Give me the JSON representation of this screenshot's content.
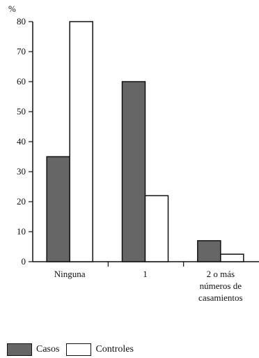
{
  "chart_data": {
    "type": "bar",
    "ylabel": "%",
    "ylim": [
      0,
      80
    ],
    "yticks": [
      0,
      10,
      20,
      30,
      40,
      50,
      60,
      70,
      80
    ],
    "categories": [
      "Ninguna",
      "1",
      "2 o más números de casamientos"
    ],
    "category_lines": [
      [
        "Ninguna"
      ],
      [
        "1"
      ],
      [
        "2 o más",
        "números de",
        "casamientos"
      ]
    ],
    "series": [
      {
        "name": "Casos",
        "color": "#666666",
        "values": [
          35,
          60,
          7
        ]
      },
      {
        "name": "Controles",
        "color": "#ffffff",
        "values": [
          80,
          22,
          2.5
        ]
      }
    ],
    "grid": false,
    "legend_position": "bottom-left"
  }
}
